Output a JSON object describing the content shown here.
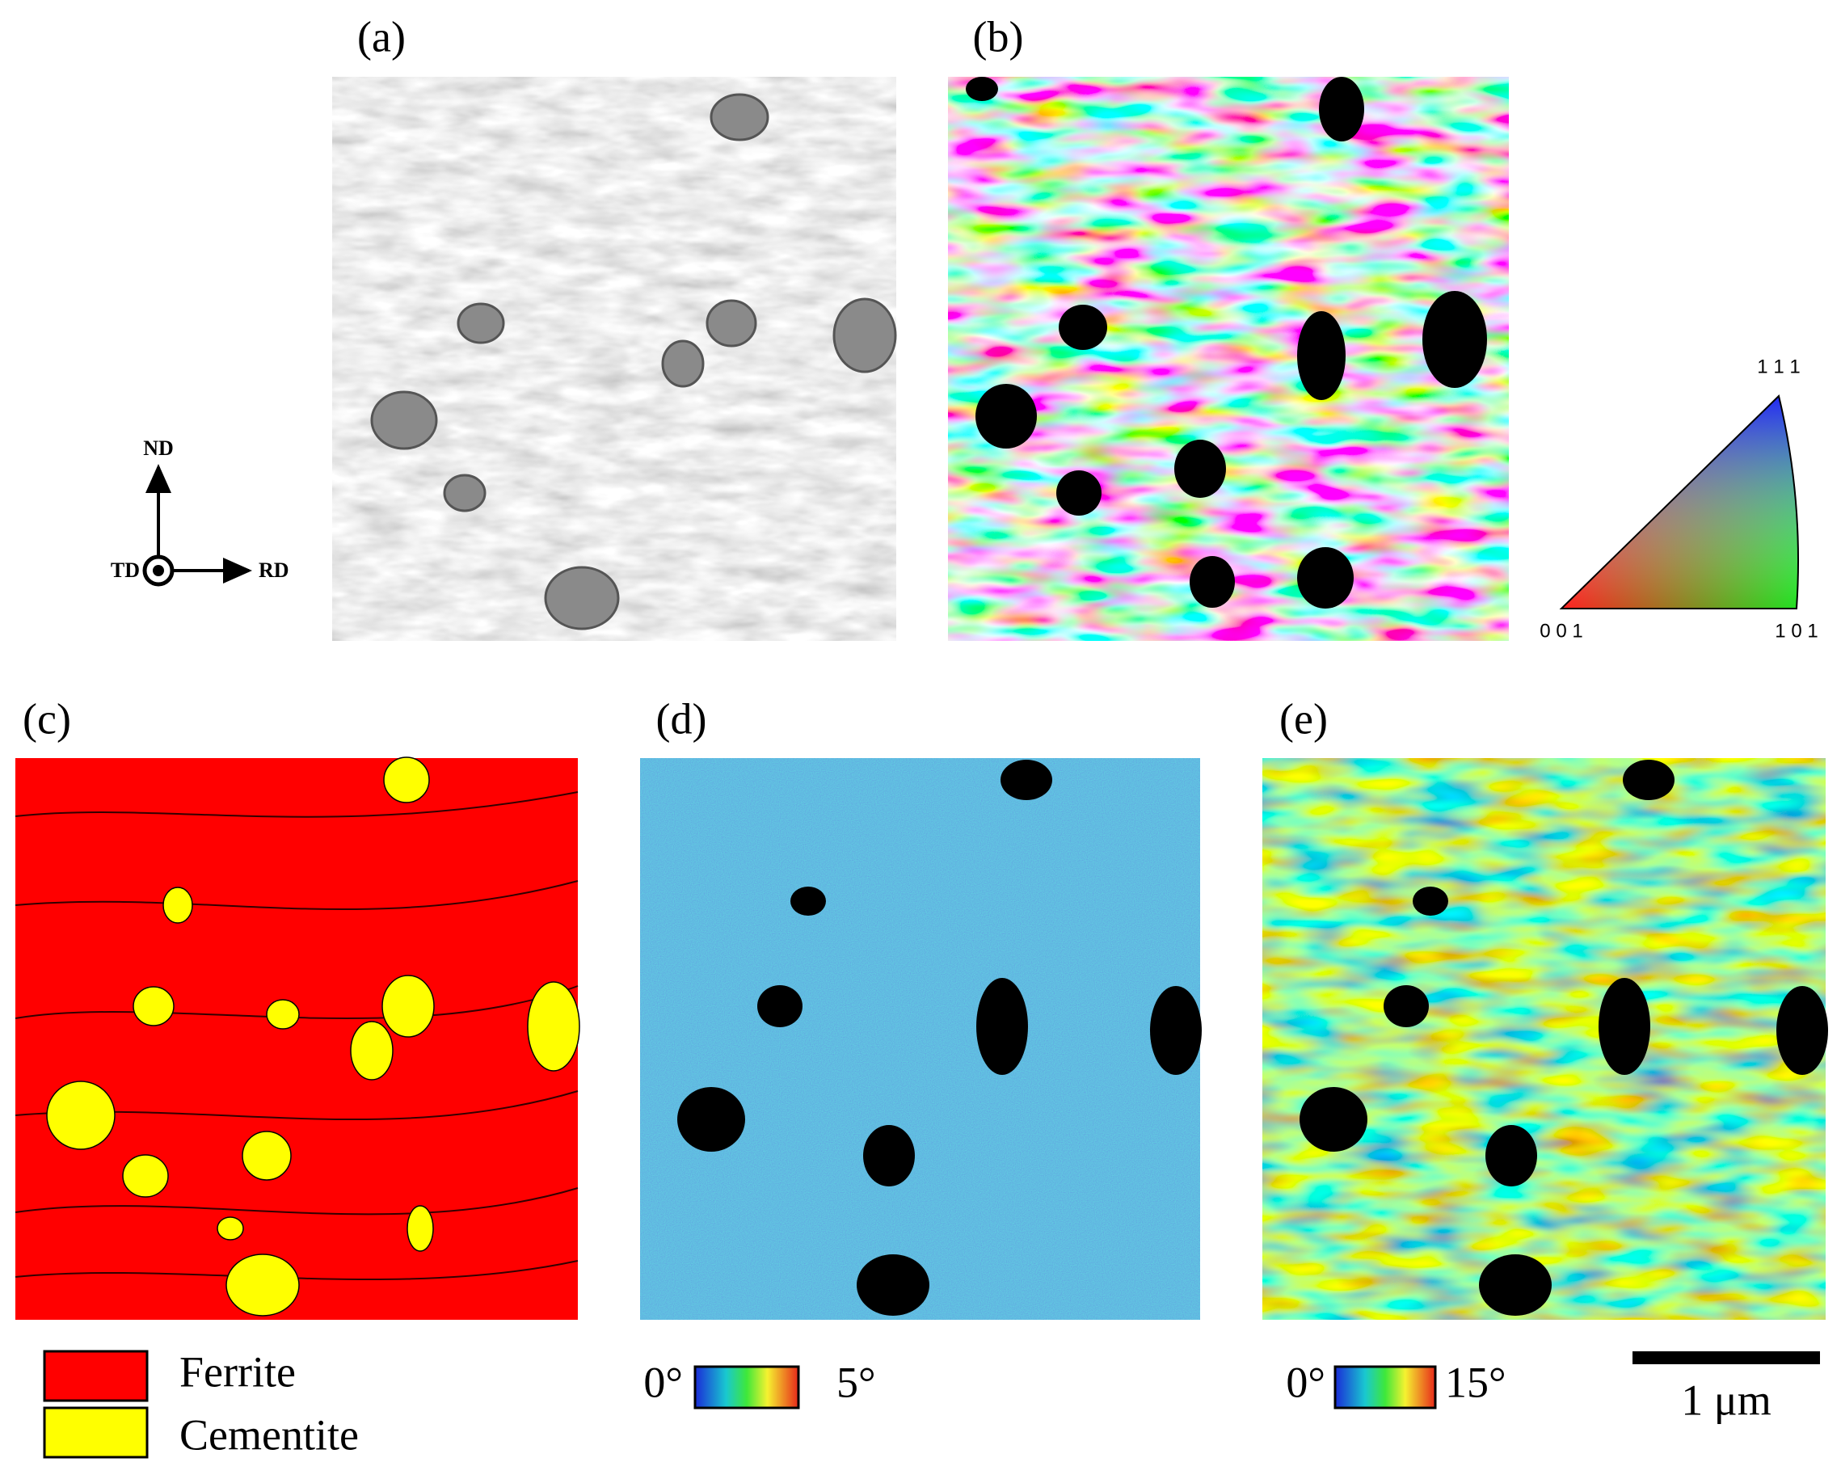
{
  "panels": [
    {
      "label": "(a)"
    },
    {
      "label": "(b)"
    },
    {
      "label": "(c)"
    },
    {
      "label": "(d)"
    },
    {
      "label": "(e)"
    }
  ],
  "orientation_axes": {
    "vertical": "ND",
    "horizontal": "RD",
    "normal": "TD"
  },
  "ipf_key": {
    "corners": [
      "0 0 1",
      "1 0 1",
      "1 1 1"
    ]
  },
  "phase_legend": [
    "Ferrite",
    "Cementite"
  ],
  "colorbars": [
    {
      "min": "0°",
      "max": "5°"
    },
    {
      "min": "0°",
      "max": "15°"
    }
  ],
  "scale_bar": "1 μm"
}
